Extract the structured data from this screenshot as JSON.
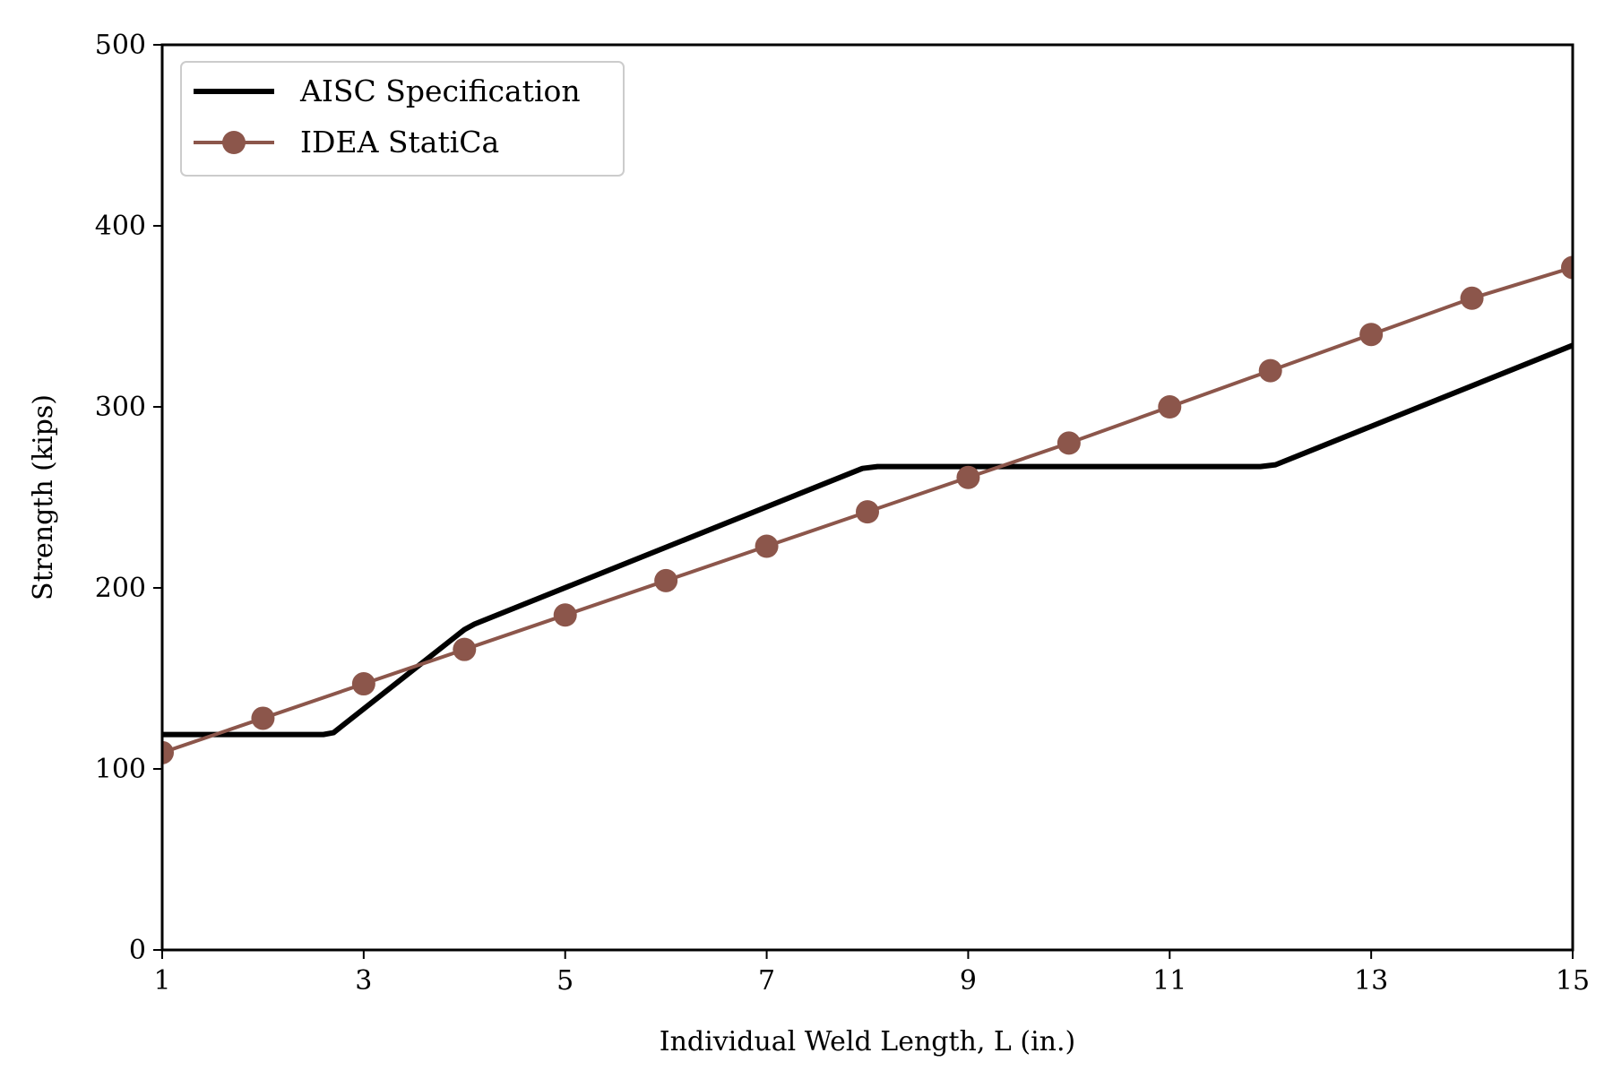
{
  "chart_data": {
    "type": "line",
    "title": "",
    "xlabel": "Individual Weld Length, L (in.)",
    "ylabel": "Strength (kips)",
    "xlim": [
      1,
      15
    ],
    "ylim": [
      0,
      500
    ],
    "xticks": [
      1,
      3,
      5,
      7,
      9,
      11,
      13,
      15
    ],
    "yticks": [
      0,
      100,
      200,
      300,
      400,
      500
    ],
    "grid": false,
    "legend_position": "top-left",
    "series": [
      {
        "name": "AISC Specification",
        "color": "#000000",
        "marker": false,
        "x": [
          1,
          2.6,
          2.7,
          4.0,
          4.1,
          7.95,
          8.1,
          11.9,
          12.05,
          15
        ],
        "y": [
          119,
          119,
          120,
          177,
          180,
          266,
          267,
          267,
          268,
          334
        ]
      },
      {
        "name": "IDEA StatiCa",
        "color": "#8c564b",
        "marker": true,
        "x": [
          1,
          2,
          3,
          4,
          5,
          6,
          7,
          8,
          9,
          10,
          11,
          12,
          13,
          14,
          15
        ],
        "y": [
          109,
          128,
          147,
          166,
          185,
          204,
          223,
          242,
          261,
          280,
          300,
          320,
          340,
          360,
          377
        ]
      }
    ]
  }
}
